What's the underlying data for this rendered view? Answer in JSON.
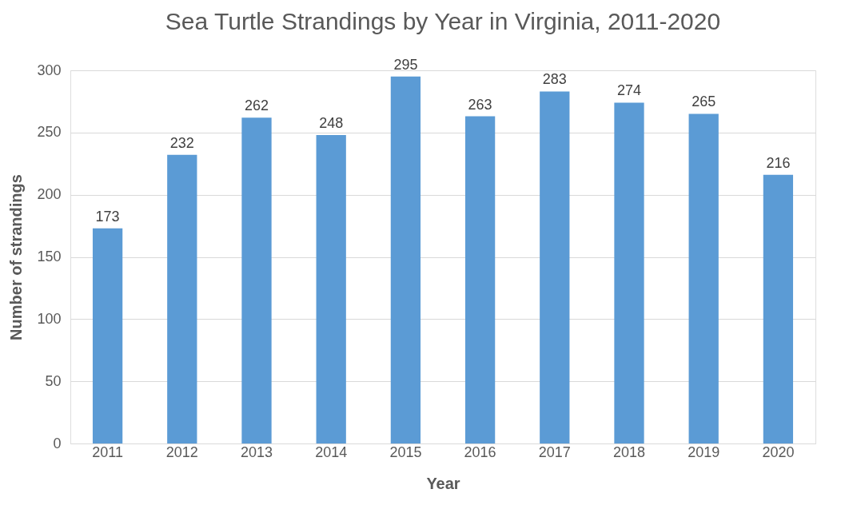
{
  "chart_data": {
    "type": "bar",
    "title": "Sea Turtle Strandings by Year in Virginia, 2011-2020",
    "xlabel": "Year",
    "ylabel": "Number of strandings",
    "categories": [
      "2011",
      "2012",
      "2013",
      "2014",
      "2015",
      "2016",
      "2017",
      "2018",
      "2019",
      "2020"
    ],
    "values": [
      173,
      232,
      262,
      248,
      295,
      263,
      283,
      274,
      265,
      216
    ],
    "color": "#5b9bd5",
    "ylim": [
      0,
      300
    ],
    "yticks": [
      0,
      50,
      100,
      150,
      200,
      250,
      300
    ],
    "grid": "y",
    "data_labels": true
  }
}
